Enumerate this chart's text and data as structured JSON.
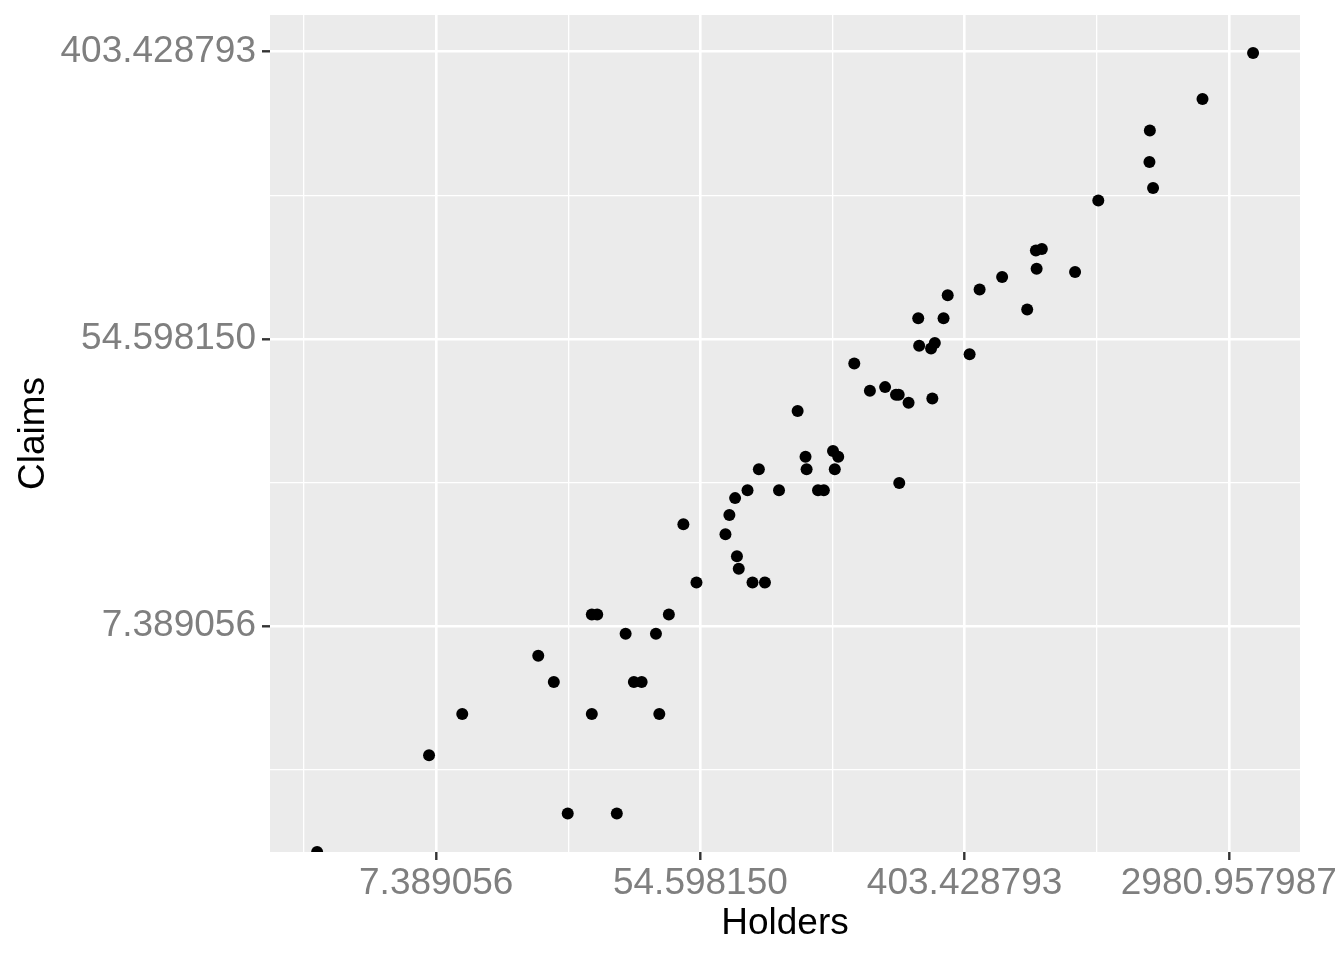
{
  "chart_data": {
    "type": "scatter",
    "xlabel": "Holders",
    "ylabel": "Claims",
    "x": [
      197,
      264,
      246,
      1680,
      284,
      536,
      696,
      3582,
      133,
      286,
      355,
      1640,
      24,
      71,
      99,
      452,
      85,
      139,
      151,
      931,
      149,
      313,
      419,
      2443,
      66,
      175,
      221,
      1110,
      9,
      48,
      72,
      322,
      35,
      73,
      89,
      648,
      53,
      155,
      240,
      1635,
      24,
      78,
      121,
      692,
      7,
      29,
      43,
      245,
      20,
      33,
      40,
      316,
      31,
      81,
      122,
      724,
      18,
      39,
      68,
      344,
      3,
      16,
      25,
      114
    ],
    "values": [
      38,
      35,
      20,
      156,
      63,
      84,
      89,
      400,
      19,
      52,
      74,
      233,
      4,
      18,
      19,
      77,
      22,
      19,
      22,
      87,
      25,
      51,
      49,
      290,
      14,
      46,
      39,
      143,
      4,
      15,
      12,
      53,
      5,
      11,
      10,
      67,
      10,
      24,
      37,
      187,
      8,
      19,
      24,
      101,
      3,
      2,
      8,
      37,
      2,
      5,
      4,
      36,
      7,
      10,
      22,
      102,
      5,
      7,
      16,
      63,
      1.53,
      6,
      8,
      33
    ],
    "color": "#000000",
    "marker": "circle",
    "log": "xy",
    "xlim": [
      2.1,
      5110
    ],
    "ylim": [
      1.53,
      521
    ],
    "xticks": [
      {
        "value": 2.718282,
        "label": null
      },
      {
        "value": 7.389056,
        "label": "7.389056"
      },
      {
        "value": 20.085537,
        "label": null
      },
      {
        "value": 54.59815,
        "label": "54.598150"
      },
      {
        "value": 148.413159,
        "label": null
      },
      {
        "value": 403.428793,
        "label": "403.428793"
      },
      {
        "value": 1096.633158,
        "label": null
      },
      {
        "value": 2980.957987,
        "label": "2980.957987"
      }
    ],
    "yticks": [
      {
        "value": 2.718282,
        "label": null
      },
      {
        "value": 7.389056,
        "label": "7.389056"
      },
      {
        "value": 20.085537,
        "label": null
      },
      {
        "value": 54.59815,
        "label": "54.598150"
      },
      {
        "value": 148.413159,
        "label": null
      },
      {
        "value": 403.428793,
        "label": "403.428793"
      }
    ],
    "grid": true
  }
}
